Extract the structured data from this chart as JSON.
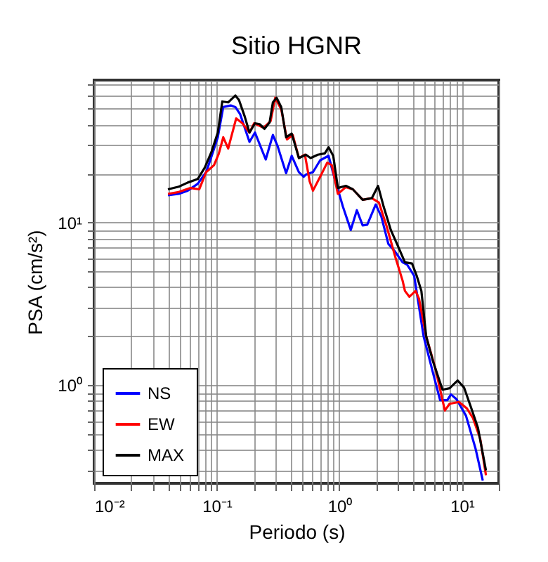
{
  "chart_data": {
    "type": "line",
    "title": "Sitio HGNR",
    "xlabel": "Periodo (s)",
    "ylabel": "PSA (cm/s²)",
    "log": "xy",
    "grid": true,
    "legend": "bottom left",
    "line_style": "solid",
    "marker": "none",
    "xlim": [
      0.01,
      20
    ],
    "ylim": [
      0.25,
      75
    ],
    "xticks": [
      {
        "value": 0.01,
        "label": "10⁻²"
      },
      {
        "value": 0.02,
        "label": null
      },
      {
        "value": 0.03,
        "label": null
      },
      {
        "value": 0.04,
        "label": null
      },
      {
        "value": 0.05,
        "label": null
      },
      {
        "value": 0.06,
        "label": null
      },
      {
        "value": 0.07,
        "label": null
      },
      {
        "value": 0.08,
        "label": null
      },
      {
        "value": 0.09,
        "label": null
      },
      {
        "value": 0.1,
        "label": "10⁻¹"
      },
      {
        "value": 0.2,
        "label": null
      },
      {
        "value": 0.3,
        "label": null
      },
      {
        "value": 0.4,
        "label": null
      },
      {
        "value": 0.5,
        "label": null
      },
      {
        "value": 0.6,
        "label": null
      },
      {
        "value": 0.7,
        "label": null
      },
      {
        "value": 0.8,
        "label": null
      },
      {
        "value": 0.9,
        "label": null
      },
      {
        "value": 1,
        "label": "10⁰"
      },
      {
        "value": 2,
        "label": null
      },
      {
        "value": 3,
        "label": null
      },
      {
        "value": 4,
        "label": null
      },
      {
        "value": 5,
        "label": null
      },
      {
        "value": 6,
        "label": null
      },
      {
        "value": 7,
        "label": null
      },
      {
        "value": 8,
        "label": null
      },
      {
        "value": 9,
        "label": null
      },
      {
        "value": 10,
        "label": "10¹"
      },
      {
        "value": 20,
        "label": null
      }
    ],
    "yticks": [
      {
        "value": 0.3,
        "label": null
      },
      {
        "value": 0.4,
        "label": null
      },
      {
        "value": 0.5,
        "label": null
      },
      {
        "value": 0.6,
        "label": null
      },
      {
        "value": 0.7,
        "label": null
      },
      {
        "value": 0.8,
        "label": null
      },
      {
        "value": 0.9,
        "label": null
      },
      {
        "value": 1,
        "label": "10⁰"
      },
      {
        "value": 2,
        "label": null
      },
      {
        "value": 3,
        "label": null
      },
      {
        "value": 4,
        "label": null
      },
      {
        "value": 5,
        "label": null
      },
      {
        "value": 6,
        "label": null
      },
      {
        "value": 7,
        "label": null
      },
      {
        "value": 8,
        "label": null
      },
      {
        "value": 9,
        "label": null
      },
      {
        "value": 10,
        "label": "10¹"
      },
      {
        "value": 20,
        "label": null
      },
      {
        "value": 30,
        "label": null
      },
      {
        "value": 40,
        "label": null
      },
      {
        "value": 50,
        "label": null
      },
      {
        "value": 60,
        "label": null
      },
      {
        "value": 70,
        "label": null
      }
    ],
    "series": [
      {
        "name": "NS",
        "color": "#0000ff",
        "x": [
          0.04,
          0.049,
          0.058,
          0.07,
          0.082,
          0.091,
          0.102,
          0.113,
          0.13,
          0.142,
          0.155,
          0.185,
          0.205,
          0.251,
          0.287,
          0.314,
          0.368,
          0.409,
          0.468,
          0.512,
          0.534,
          0.61,
          0.697,
          0.817,
          0.892,
          1.07,
          1.24,
          1.39,
          1.55,
          1.69,
          1.98,
          2.2,
          2.51,
          2.82,
          3.28,
          3.58,
          4.08,
          4.87,
          5.83,
          6.64,
          7.6,
          8.14,
          9.06,
          10.8,
          12.9,
          14.8
        ],
        "values": [
          14.7,
          15.0,
          15.7,
          17.3,
          20.4,
          25.7,
          33.4,
          51.2,
          52.4,
          51.2,
          46.4,
          31.3,
          35.7,
          24.4,
          34.5,
          29.4,
          20.1,
          25.7,
          20.4,
          19.1,
          19.7,
          20.4,
          24.1,
          25.7,
          20.0,
          12.5,
          9.0,
          11.9,
          9.6,
          9.7,
          12.9,
          10.9,
          7.4,
          6.7,
          5.7,
          5.5,
          4.7,
          2.0,
          1.18,
          0.81,
          0.81,
          0.88,
          0.82,
          0.65,
          0.41,
          0.26
        ]
      },
      {
        "name": "EW",
        "color": "#ff0000",
        "x": [
          0.04,
          0.049,
          0.061,
          0.072,
          0.082,
          0.095,
          0.104,
          0.113,
          0.124,
          0.144,
          0.162,
          0.185,
          0.202,
          0.241,
          0.275,
          0.3,
          0.336,
          0.374,
          0.417,
          0.468,
          0.524,
          0.573,
          0.61,
          0.697,
          0.796,
          0.869,
          0.973,
          1.13,
          1.29,
          1.55,
          1.84,
          2.1,
          2.42,
          2.87,
          3.28,
          3.43,
          3.73,
          4.19,
          4.47,
          5.11,
          6.09,
          7.26,
          7.94,
          9.48,
          11.0,
          12.3,
          14.1,
          15.7
        ],
        "values": [
          15.0,
          15.4,
          16.3,
          16.0,
          20.4,
          22.5,
          26.5,
          33.4,
          28.5,
          43.6,
          40.7,
          35.7,
          40.7,
          38.2,
          42.0,
          58.4,
          49.5,
          32.4,
          34.5,
          24.9,
          26.1,
          17.9,
          15.7,
          19.1,
          23.3,
          22.5,
          15.0,
          16.5,
          16.0,
          13.8,
          14.1,
          13.3,
          9.6,
          6.1,
          4.4,
          3.8,
          3.5,
          3.8,
          3.4,
          2.0,
          1.26,
          0.7,
          0.77,
          0.79,
          0.72,
          0.63,
          0.47,
          0.28
        ]
      },
      {
        "name": "MAX",
        "color": "#000000",
        "x": [
          0.04,
          0.049,
          0.058,
          0.07,
          0.08,
          0.091,
          0.102,
          0.111,
          0.124,
          0.133,
          0.142,
          0.152,
          0.169,
          0.185,
          0.205,
          0.224,
          0.245,
          0.27,
          0.287,
          0.308,
          0.336,
          0.368,
          0.409,
          0.468,
          0.534,
          0.583,
          0.667,
          0.761,
          0.817,
          0.892,
          0.973,
          1.13,
          1.29,
          1.55,
          1.84,
          2.07,
          2.3,
          2.63,
          3.0,
          3.43,
          3.92,
          4.28,
          4.67,
          5.11,
          5.83,
          6.95,
          7.94,
          9.23,
          10.4,
          11.8,
          13.5,
          15.7
        ],
        "values": [
          16.0,
          16.6,
          17.6,
          18.5,
          21.8,
          27.4,
          35.7,
          55.4,
          54.7,
          57.6,
          60.3,
          56.5,
          44.9,
          35.7,
          40.7,
          40.2,
          37.6,
          41.2,
          54.7,
          58.4,
          51.2,
          33.4,
          35.2,
          24.9,
          26.1,
          24.9,
          26.1,
          26.6,
          29.0,
          25.7,
          16.3,
          16.8,
          16.0,
          13.8,
          14.1,
          16.8,
          12.5,
          9.0,
          7.2,
          5.7,
          5.6,
          4.7,
          3.8,
          2.0,
          1.39,
          0.94,
          0.96,
          1.07,
          0.97,
          0.74,
          0.55,
          0.3
        ]
      }
    ]
  }
}
